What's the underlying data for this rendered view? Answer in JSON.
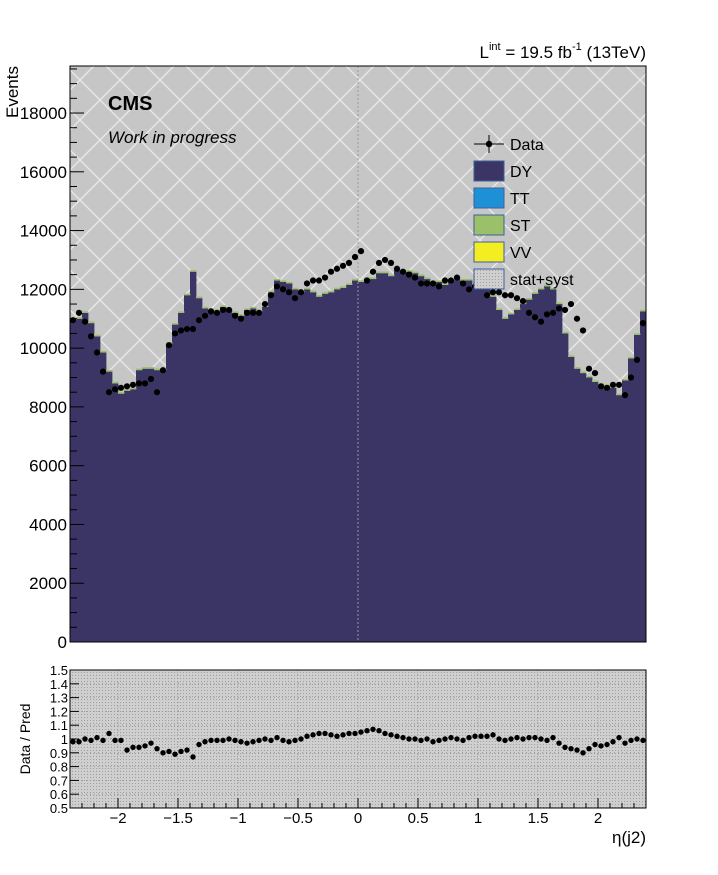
{
  "header": {
    "lumi_prefix": "L",
    "lumi_sup1": "int",
    "lumi_mid": " = 19.5 fb",
    "lumi_sup2": "-1",
    "lumi_suffix": " (13TeV)"
  },
  "labels": {
    "experiment": "CMS",
    "status": "Work in progress"
  },
  "colors": {
    "DY": "#3b3565",
    "TT": "#1e90d6",
    "ST": "#9ac06a",
    "VV": "#f2ee22",
    "band": "#c9c9c9",
    "data": "#000000"
  },
  "chart_data": [
    {
      "type": "histogram",
      "title": "",
      "xlabel": "",
      "ylabel": "Events",
      "xlim": [
        -2.4,
        2.4
      ],
      "ylim": [
        0,
        19600
      ],
      "yticks": [
        0,
        2000,
        4000,
        6000,
        8000,
        10000,
        12000,
        14000,
        16000,
        18000
      ],
      "grid": false,
      "legend_position": "top-right",
      "legend": [
        {
          "key": "Data",
          "label": "Data",
          "style": "marker"
        },
        {
          "key": "DY",
          "label": "DY",
          "style": "box"
        },
        {
          "key": "TT",
          "label": "TT",
          "style": "box"
        },
        {
          "key": "ST",
          "label": "ST",
          "style": "box"
        },
        {
          "key": "VV",
          "label": "VV",
          "style": "box"
        },
        {
          "key": "band",
          "label": "stat+syst",
          "style": "box"
        }
      ],
      "bins": {
        "count": 96,
        "low": -2.4,
        "high": 2.4
      },
      "series": [
        {
          "name": "DY",
          "values": [
            10950,
            11000,
            11200,
            10850,
            10400,
            9850,
            9200,
            8800,
            8450,
            8550,
            8600,
            9250,
            9300,
            9300,
            9250,
            9250,
            10150,
            10800,
            11200,
            11800,
            12600,
            11700,
            11350,
            11300,
            11250,
            11400,
            11300,
            11200,
            11100,
            11300,
            11350,
            11250,
            11400,
            11900,
            12300,
            12250,
            12200,
            12000,
            11900,
            12000,
            11900,
            11750,
            11850,
            11900,
            12000,
            12050,
            12150,
            12300,
            12250,
            12350,
            12350,
            12550,
            12550,
            12450,
            12650,
            12600,
            12600,
            12550,
            12450,
            12350,
            12250,
            12250,
            12150,
            12300,
            12350,
            12300,
            12300,
            12150,
            12150,
            12000,
            11750,
            11300,
            11000,
            11150,
            11300,
            11500,
            11650,
            11850,
            12000,
            12100,
            12000,
            11500,
            10500,
            9700,
            9300,
            9150,
            9000,
            8850,
            8750,
            8700,
            8650,
            8400,
            8900,
            9650,
            10450,
            11250
          ]
        },
        {
          "name": "TT",
          "values": []
        },
        {
          "name": "ST",
          "values": []
        },
        {
          "name": "VV",
          "values": []
        },
        {
          "name": "Data",
          "values": [
            10950,
            11200,
            10900,
            10400,
            9850,
            9200,
            8500,
            8600,
            8650,
            8700,
            8750,
            8800,
            8800,
            8950,
            8500,
            9250,
            10100,
            10500,
            10600,
            10650,
            10650,
            10950,
            11100,
            11250,
            11200,
            11300,
            11300,
            11100,
            11000,
            11200,
            11200,
            11200,
            11500,
            11800,
            12100,
            12000,
            11900,
            11700,
            11900,
            12200,
            12300,
            12300,
            12400,
            12600,
            12700,
            12800,
            12900,
            13100,
            13300,
            12300,
            12600,
            12900,
            13000,
            12900,
            12700,
            12600,
            12500,
            12400,
            12200,
            12200,
            12200,
            12100,
            12300,
            12300,
            12400,
            12200,
            12000,
            12100,
            12100,
            11800,
            11900,
            11900,
            11800,
            11800,
            11700,
            11600,
            11200,
            11050,
            10900,
            11150,
            11200,
            11350,
            11300,
            11500,
            11000,
            10600,
            9300,
            9150,
            8700,
            8650,
            8750,
            8750,
            8400,
            9000,
            9600,
            10850
          ]
        }
      ]
    },
    {
      "type": "scatter",
      "title": "",
      "xlabel": "η(j2)",
      "ylabel": "Data / Pred",
      "xlim": [
        -2.4,
        2.4
      ],
      "ylim": [
        0.5,
        1.5
      ],
      "xticks": [
        -2,
        -1.5,
        -1,
        -0.5,
        0,
        0.5,
        1,
        1.5,
        2
      ],
      "xtick_labels": [
        "−2",
        "−1.5",
        "−1",
        "−0.5",
        "0",
        "0.5",
        "1",
        "1.5",
        "2"
      ],
      "yticks": [
        0.5,
        0.6,
        0.7,
        0.8,
        0.9,
        1,
        1.1,
        1.2,
        1.3,
        1.4,
        1.5
      ],
      "ytick_labels": [
        "0.5",
        "0.6",
        "0.7",
        "0.8",
        "0.9",
        "1",
        "1.1",
        "1.2",
        "1.3",
        "1.4",
        "1.5"
      ],
      "grid": true,
      "series": [
        {
          "name": "Data / Pred",
          "values": [
            0.98,
            0.98,
            1.0,
            0.99,
            1.01,
            0.99,
            1.04,
            0.99,
            0.99,
            0.92,
            0.94,
            0.94,
            0.95,
            0.97,
            0.93,
            0.9,
            0.91,
            0.89,
            0.91,
            0.92,
            0.87,
            0.96,
            0.98,
            0.99,
            0.99,
            0.99,
            1.0,
            0.99,
            0.98,
            0.97,
            0.98,
            0.99,
            1.0,
            0.99,
            1.01,
            0.99,
            0.98,
            0.99,
            1.0,
            1.02,
            1.03,
            1.04,
            1.04,
            1.03,
            1.02,
            1.03,
            1.04,
            1.04,
            1.05,
            1.06,
            1.07,
            1.06,
            1.04,
            1.03,
            1.02,
            1.01,
            1.0,
            1.0,
            0.99,
            1.0,
            0.98,
            0.99,
            1.0,
            1.01,
            1.0,
            0.99,
            1.01,
            1.02,
            1.02,
            1.02,
            1.03,
            1.0,
            0.99,
            1.0,
            1.01,
            1.0,
            1.01,
            1.01,
            1.0,
            0.99,
            1.01,
            0.97,
            0.94,
            0.93,
            0.92,
            0.9,
            0.93,
            0.96,
            0.95,
            0.96,
            0.98,
            1.01,
            0.97,
            0.99,
            1.0,
            0.99
          ]
        }
      ]
    }
  ]
}
